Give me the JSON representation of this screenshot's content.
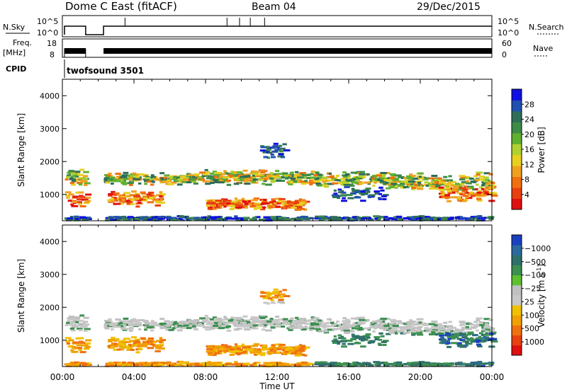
{
  "chart_data": [
    {
      "type": "heatmap",
      "title": "Dome C East (fitACF)",
      "subtitle": "Beam 04",
      "date": "29/Dec/2015",
      "panel": "power",
      "ylabel": "Slant Range [km]",
      "xlabel": "Time UT",
      "xlim_hours": [
        0,
        24
      ],
      "xticks": [
        "00:00",
        "04:00",
        "08:00",
        "12:00",
        "16:00",
        "20:00",
        "00:00"
      ],
      "ylim": [
        200,
        4500
      ],
      "yticks": [
        1000,
        2000,
        3000,
        4000
      ],
      "colorbar_label": "Power [dB]",
      "colorbar_ticks": [
        4,
        8,
        12,
        16,
        20,
        24,
        28
      ],
      "colorbar_colors": [
        "#1010e0",
        "#2050b0",
        "#2e6e58",
        "#3c8c48",
        "#60b030",
        "#b0d030",
        "#e8d020",
        "#f0a020",
        "#f07010",
        "#e84010",
        "#e01010"
      ]
    },
    {
      "type": "heatmap",
      "panel": "velocity",
      "ylabel": "Slant Range [km]",
      "xlabel": "Time UT",
      "xlim_hours": [
        0,
        24
      ],
      "ylim": [
        200,
        4500
      ],
      "yticks": [
        1000,
        2000,
        3000,
        4000
      ],
      "colorbar_label": "Velocity [m s",
      "colorbar_label_sup": "-1",
      "colorbar_label_end": "]",
      "colorbar_ticks": [
        "1000",
        "500",
        "100",
        "25",
        "−25",
        "−100",
        "−500",
        "−1000"
      ],
      "colorbar_colors": [
        "#1a40c0",
        "#2a6aa0",
        "#30706a",
        "#3c9050",
        "#5fc030",
        "#c0c0c0",
        "#c8c8c8",
        "#f0c000",
        "#f0a000",
        "#f07010",
        "#e84010",
        "#e01010"
      ]
    }
  ],
  "top_panels": {
    "nsky_label": "N.Sky",
    "nsky_ticks": [
      "10^5",
      "10^0"
    ],
    "nsearch_label": "N.Search",
    "freq_label": "Freq.",
    "freq_unit": "[MHz]",
    "freq_ticks": [
      "18",
      "8"
    ],
    "nave_label": "Nave",
    "nave_ticks": [
      "60",
      "0"
    ],
    "cpid_label": "CPID",
    "cpid_value": "twofsound 3501"
  },
  "colors": {
    "grey": "#c4c4c4",
    "green_dark": "#2e6e58",
    "orange": "#f0a020"
  }
}
